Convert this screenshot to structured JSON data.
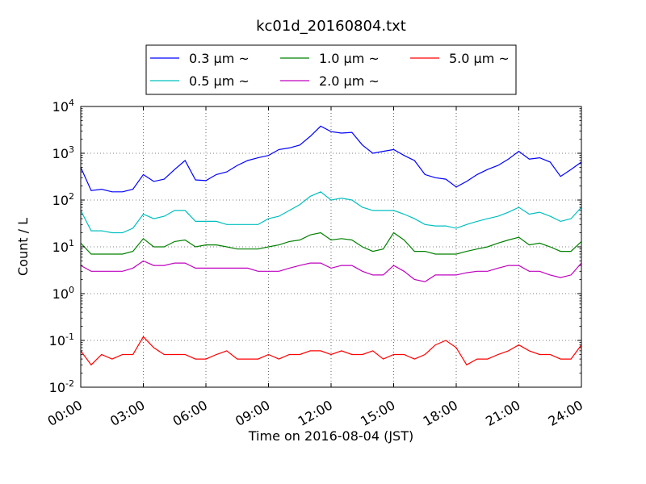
{
  "chart_data": {
    "type": "line",
    "title": "kc01d_20160804.txt",
    "xlabel": "Time on 2016-08-04 (JST)",
    "ylabel": "Count / L",
    "yscale": "log",
    "ylim": [
      0.01,
      10000
    ],
    "xlim": [
      "00:00",
      "24:00"
    ],
    "x_ticks": [
      "00:00",
      "03:00",
      "06:00",
      "09:00",
      "12:00",
      "15:00",
      "18:00",
      "21:00",
      "24:00"
    ],
    "y_ticks": [
      {
        "value": 0.01,
        "base": "10",
        "exp": "-2"
      },
      {
        "value": 0.1,
        "base": "10",
        "exp": "-1"
      },
      {
        "value": 1,
        "base": "10",
        "exp": "0"
      },
      {
        "value": 10,
        "base": "10",
        "exp": "1"
      },
      {
        "value": 100,
        "base": "10",
        "exp": "2"
      },
      {
        "value": 1000,
        "base": "10",
        "exp": "3"
      },
      {
        "value": 10000,
        "base": "10",
        "exp": "4"
      }
    ],
    "grid": true,
    "legend_position": "top-center",
    "series": [
      {
        "name": "0.3 μm ~",
        "color": "#0000ff",
        "x": [
          "00:00",
          "00:30",
          "01:00",
          "01:30",
          "02:00",
          "02:30",
          "03:00",
          "03:30",
          "04:00",
          "04:30",
          "05:00",
          "05:30",
          "06:00",
          "06:30",
          "07:00",
          "07:30",
          "08:00",
          "08:30",
          "09:00",
          "09:30",
          "10:00",
          "10:30",
          "11:00",
          "11:30",
          "12:00",
          "12:30",
          "13:00",
          "13:30",
          "14:00",
          "14:30",
          "15:00",
          "15:30",
          "16:00",
          "16:30",
          "17:00",
          "17:30",
          "18:00",
          "18:30",
          "19:00",
          "19:30",
          "20:00",
          "20:30",
          "21:00",
          "21:30",
          "22:00",
          "22:30",
          "23:00",
          "23:30",
          "24:00"
        ],
        "values": [
          500,
          160,
          170,
          150,
          150,
          170,
          350,
          250,
          280,
          450,
          700,
          270,
          260,
          350,
          400,
          550,
          700,
          800,
          900,
          1200,
          1300,
          1500,
          2300,
          3800,
          2900,
          2700,
          2800,
          1500,
          1000,
          1100,
          1200,
          900,
          700,
          350,
          300,
          280,
          190,
          250,
          350,
          450,
          550,
          750,
          1100,
          750,
          800,
          650,
          320,
          450,
          650
        ]
      },
      {
        "name": "0.5 μm ~",
        "color": "#00bfbf",
        "x": [
          "00:00",
          "00:30",
          "01:00",
          "01:30",
          "02:00",
          "02:30",
          "03:00",
          "03:30",
          "04:00",
          "04:30",
          "05:00",
          "05:30",
          "06:00",
          "06:30",
          "07:00",
          "07:30",
          "08:00",
          "08:30",
          "09:00",
          "09:30",
          "10:00",
          "10:30",
          "11:00",
          "11:30",
          "12:00",
          "12:30",
          "13:00",
          "13:30",
          "14:00",
          "14:30",
          "15:00",
          "15:30",
          "16:00",
          "16:30",
          "17:00",
          "17:30",
          "18:00",
          "18:30",
          "19:00",
          "19:30",
          "20:00",
          "20:30",
          "21:00",
          "21:30",
          "22:00",
          "22:30",
          "23:00",
          "23:30",
          "24:00"
        ],
        "values": [
          60,
          22,
          22,
          20,
          20,
          25,
          50,
          40,
          45,
          60,
          60,
          35,
          35,
          35,
          30,
          30,
          30,
          30,
          40,
          45,
          60,
          80,
          120,
          150,
          100,
          110,
          100,
          70,
          60,
          60,
          60,
          50,
          40,
          30,
          28,
          28,
          25,
          30,
          35,
          40,
          45,
          55,
          70,
          50,
          55,
          45,
          35,
          40,
          70
        ]
      },
      {
        "name": "1.0 μm ~",
        "color": "#008000",
        "x": [
          "00:00",
          "00:30",
          "01:00",
          "01:30",
          "02:00",
          "02:30",
          "03:00",
          "03:30",
          "04:00",
          "04:30",
          "05:00",
          "05:30",
          "06:00",
          "06:30",
          "07:00",
          "07:30",
          "08:00",
          "08:30",
          "09:00",
          "09:30",
          "10:00",
          "10:30",
          "11:00",
          "11:30",
          "12:00",
          "12:30",
          "13:00",
          "13:30",
          "14:00",
          "14:30",
          "15:00",
          "15:30",
          "16:00",
          "16:30",
          "17:00",
          "17:30",
          "18:00",
          "18:30",
          "19:00",
          "19:30",
          "20:00",
          "20:30",
          "21:00",
          "21:30",
          "22:00",
          "22:30",
          "23:00",
          "23:30",
          "24:00"
        ],
        "values": [
          12,
          7,
          7,
          7,
          7,
          8,
          15,
          10,
          10,
          13,
          14,
          10,
          11,
          11,
          10,
          9,
          9,
          9,
          10,
          11,
          13,
          14,
          18,
          20,
          14,
          15,
          14,
          10,
          8,
          9,
          20,
          14,
          8,
          8,
          7,
          7,
          7,
          8,
          9,
          10,
          12,
          14,
          16,
          11,
          12,
          10,
          8,
          8,
          13
        ]
      },
      {
        "name": "2.0 μm ~",
        "color": "#bf00bf",
        "x": [
          "00:00",
          "00:30",
          "01:00",
          "01:30",
          "02:00",
          "02:30",
          "03:00",
          "03:30",
          "04:00",
          "04:30",
          "05:00",
          "05:30",
          "06:00",
          "06:30",
          "07:00",
          "07:30",
          "08:00",
          "08:30",
          "09:00",
          "09:30",
          "10:00",
          "10:30",
          "11:00",
          "11:30",
          "12:00",
          "12:30",
          "13:00",
          "13:30",
          "14:00",
          "14:30",
          "15:00",
          "15:30",
          "16:00",
          "16:30",
          "17:00",
          "17:30",
          "18:00",
          "18:30",
          "19:00",
          "19:30",
          "20:00",
          "20:30",
          "21:00",
          "21:30",
          "22:00",
          "22:30",
          "23:00",
          "23:30",
          "24:00"
        ],
        "values": [
          4,
          3,
          3,
          3,
          3,
          3.5,
          5,
          4,
          4,
          4.5,
          4.5,
          3.5,
          3.5,
          3.5,
          3.5,
          3.5,
          3.5,
          3,
          3,
          3,
          3.5,
          4,
          4.5,
          4.5,
          3.5,
          4,
          4,
          3,
          2.5,
          2.5,
          4,
          3,
          2,
          1.8,
          2.5,
          2.5,
          2.5,
          2.8,
          3,
          3,
          3.5,
          4,
          4,
          3,
          3,
          2.5,
          2.2,
          2.5,
          4.5
        ]
      },
      {
        "name": "5.0 μm ~",
        "color": "#ff0000",
        "x": [
          "00:00",
          "00:30",
          "01:00",
          "01:30",
          "02:00",
          "02:30",
          "03:00",
          "03:30",
          "04:00",
          "04:30",
          "05:00",
          "05:30",
          "06:00",
          "06:30",
          "07:00",
          "07:30",
          "08:00",
          "08:30",
          "09:00",
          "09:30",
          "10:00",
          "10:30",
          "11:00",
          "11:30",
          "12:00",
          "12:30",
          "13:00",
          "13:30",
          "14:00",
          "14:30",
          "15:00",
          "15:30",
          "16:00",
          "16:30",
          "17:00",
          "17:30",
          "18:00",
          "18:30",
          "19:00",
          "19:30",
          "20:00",
          "20:30",
          "21:00",
          "21:30",
          "22:00",
          "22:30",
          "23:00",
          "23:30",
          "24:00"
        ],
        "values": [
          0.06,
          0.03,
          0.05,
          0.04,
          0.05,
          0.05,
          0.12,
          0.07,
          0.05,
          0.05,
          0.05,
          0.04,
          0.04,
          0.05,
          0.06,
          0.04,
          0.04,
          0.04,
          0.05,
          0.04,
          0.05,
          0.05,
          0.06,
          0.06,
          0.05,
          0.06,
          0.05,
          0.05,
          0.06,
          0.04,
          0.05,
          0.05,
          0.04,
          0.05,
          0.08,
          0.1,
          0.07,
          0.03,
          0.04,
          0.04,
          0.05,
          0.06,
          0.08,
          0.06,
          0.05,
          0.05,
          0.04,
          0.04,
          0.08
        ]
      }
    ]
  }
}
